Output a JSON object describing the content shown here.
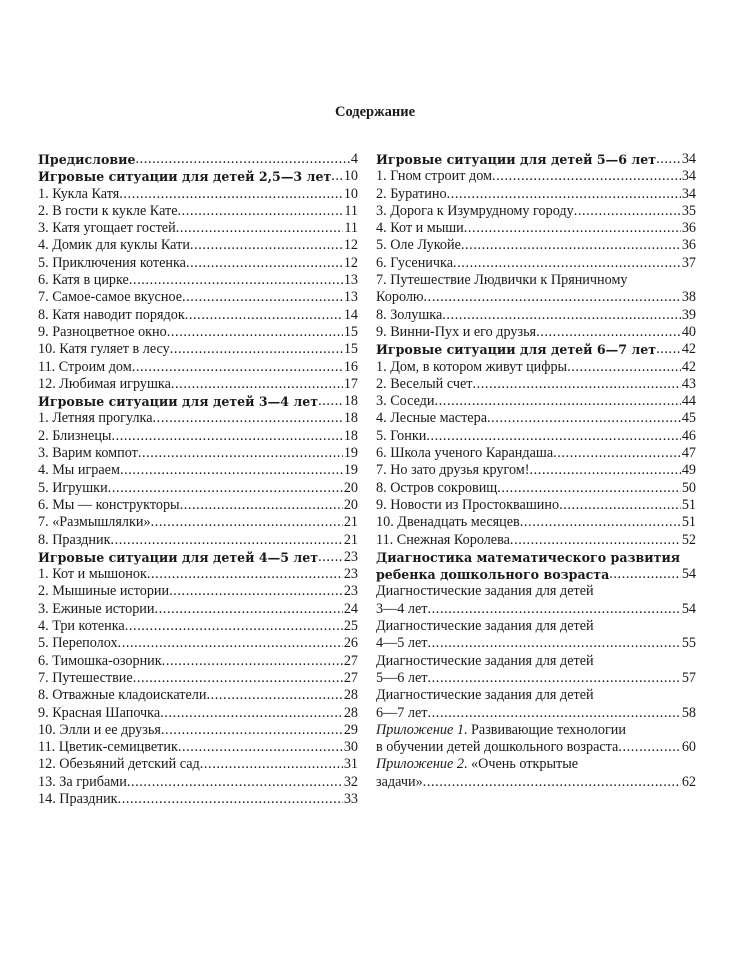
{
  "title": "Содержание",
  "left": [
    {
      "title": "Предисловие",
      "page": "4",
      "bold": true
    },
    {
      "title": "Игровые ситуации для детей 2,5—3 лет",
      "page": "10",
      "bold": true
    },
    {
      "title": "1. Кукла Катя",
      "page": "10"
    },
    {
      "title": "2. В гости к кукле Кате",
      "page": "11"
    },
    {
      "title": "3. Катя угощает гостей",
      "page": "11"
    },
    {
      "title": "4. Домик для куклы Кати",
      "page": "12"
    },
    {
      "title": "5. Приключения котенка",
      "page": "12"
    },
    {
      "title": "6. Катя в цирке",
      "page": "13"
    },
    {
      "title": "7. Самое-самое вкусное",
      "page": "13"
    },
    {
      "title": "8. Катя наводит порядок",
      "page": "14"
    },
    {
      "title": "9. Разноцветное окно",
      "page": "15"
    },
    {
      "title": "10. Катя гуляет в лесу",
      "page": "15"
    },
    {
      "title": "11. Строим дом",
      "page": "16"
    },
    {
      "title": "12. Любимая игрушка",
      "page": "17"
    },
    {
      "title": "Игровые ситуации для детей 3—4 лет",
      "page": "18",
      "bold": true
    },
    {
      "title": "1. Летняя прогулка",
      "page": "18"
    },
    {
      "title": "2. Близнецы",
      "page": "18"
    },
    {
      "title": "3. Варим компот",
      "page": "19"
    },
    {
      "title": "4. Мы играем",
      "page": "19"
    },
    {
      "title": "5. Игрушки",
      "page": "20"
    },
    {
      "title": "6. Мы — конструкторы",
      "page": "20"
    },
    {
      "title": "7. «Размышлялки»",
      "page": "21"
    },
    {
      "title": "8. Праздник",
      "page": "21"
    },
    {
      "title": "Игровые ситуации для детей 4—5 лет",
      "page": "23",
      "bold": true
    },
    {
      "title": "1. Кот и мышонок",
      "page": "23"
    },
    {
      "title": "2. Мышиные истории",
      "page": "23"
    },
    {
      "title": "3. Ежиные истории",
      "page": "24"
    },
    {
      "title": "4. Три котенка",
      "page": "25"
    },
    {
      "title": "5. Переполох",
      "page": "26"
    },
    {
      "title": "6. Тимошка-озорник",
      "page": "27"
    },
    {
      "title": "7. Путешествие",
      "page": "27"
    },
    {
      "title": "8. Отважные кладоискатели",
      "page": "28"
    },
    {
      "title": "9. Красная Шапочка",
      "page": "28"
    },
    {
      "title": "10. Элли и ее друзья",
      "page": "29"
    },
    {
      "title": "11. Цветик-семицветик",
      "page": "30"
    },
    {
      "title": "12. Обезьяний детский сад",
      "page": "31"
    },
    {
      "title": "13. За грибами",
      "page": "32"
    },
    {
      "title": "14. Праздник",
      "page": "33"
    }
  ],
  "right": [
    {
      "title": "Игровые ситуации для детей 5—6 лет",
      "page": "34",
      "bold": true
    },
    {
      "title": "1. Гном строит дом",
      "page": "34"
    },
    {
      "title": "2. Буратино",
      "page": "34"
    },
    {
      "title": "3. Дорога к Изумрудному городу",
      "page": "35"
    },
    {
      "title": "4. Кот и мыши",
      "page": "36"
    },
    {
      "title": "5. Оле Лукойе",
      "page": "36"
    },
    {
      "title": "6. Гусеничка",
      "page": "37"
    },
    {
      "title": "7. Путешествие Людвички к Пряничному",
      "title2": "Королю",
      "page": "38"
    },
    {
      "title": "8. Золушка",
      "page": "39"
    },
    {
      "title": "9. Винни-Пух и его друзья",
      "page": "40"
    },
    {
      "title": "Игровые ситуации для детей 6—7 лет",
      "page": "42",
      "bold": true
    },
    {
      "title": "1. Дом, в котором живут цифры",
      "page": "42"
    },
    {
      "title": "2. Веселый счет",
      "page": "43"
    },
    {
      "title": "3. Соседи",
      "page": "44"
    },
    {
      "title": "4. Лесные мастера",
      "page": "45"
    },
    {
      "title": "5. Гонки",
      "page": "46"
    },
    {
      "title": "6. Школа ученого Карандаша",
      "page": "47"
    },
    {
      "title": "7. Но зато друзья кругом!",
      "page": "49"
    },
    {
      "title": "8. Остров сокровищ",
      "page": "50"
    },
    {
      "title": "9. Новости из Простоквашино",
      "page": "51"
    },
    {
      "title": "10. Двенадцать месяцев",
      "page": "51"
    },
    {
      "title": "11. Снежная Королева",
      "page": "52"
    },
    {
      "title": "Диагностика математического развития",
      "title2": "ребенка дошкольного возраста",
      "page": "54",
      "bold": true
    },
    {
      "title": "Диагностические задания для детей",
      "title2": "3—4 лет",
      "page": "54"
    },
    {
      "title": "Диагностические задания для детей",
      "title2": "4—5 лет",
      "page": "55"
    },
    {
      "title": "Диагностические задания для детей",
      "title2": "5—6 лет",
      "page": "57"
    },
    {
      "title": "Диагностические задания для детей",
      "title2": "6—7 лет",
      "page": "58"
    },
    {
      "prefix": "Приложение 1",
      "title": ". Развивающие технологии",
      "title2": "в обучении детей дошкольного возраста",
      "page": "60"
    },
    {
      "prefix": "Приложение 2",
      "title": ". «Очень открытые",
      "title2": "задачи»",
      "page": "62"
    }
  ]
}
